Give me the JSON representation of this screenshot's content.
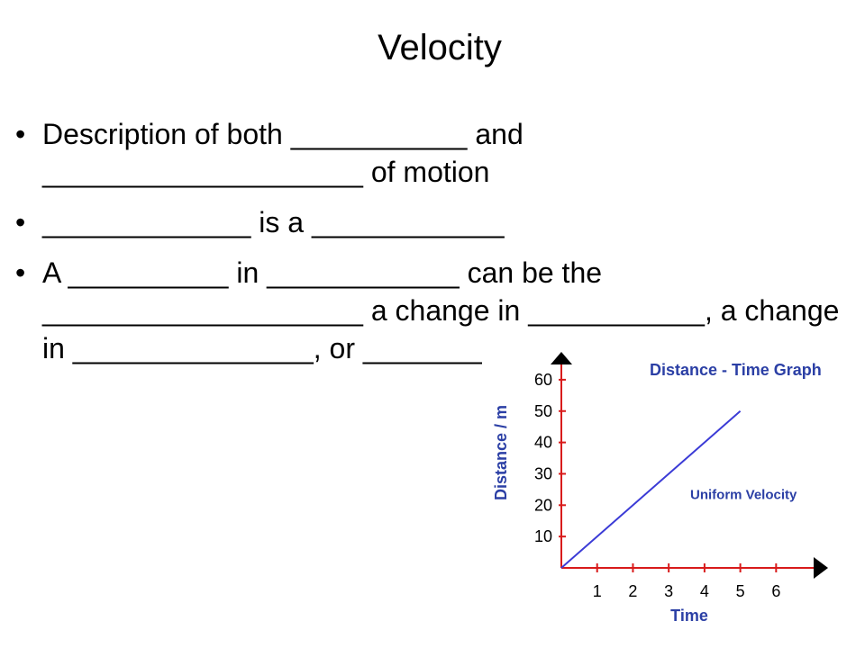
{
  "slide": {
    "title": "Velocity",
    "bullets": [
      {
        "text": "Description of both ___________ and ____________________ of motion"
      },
      {
        "text": "_____________ is a ____________"
      },
      {
        "text": "A __________ in ____________ can be the ____________________ a change in ___________, a change in _______________, or __________"
      }
    ]
  },
  "bullet_glyph": "•",
  "colors": {
    "text": "#000000",
    "axis": "#d81b1b",
    "line": "#3b3bd6",
    "chart_text": "#2b3fa5"
  },
  "chart_data": {
    "type": "line",
    "title": "Distance - Time Graph",
    "xlabel": "Time",
    "ylabel": "Distance / m",
    "x_ticks": [
      1,
      2,
      3,
      4,
      5,
      6
    ],
    "y_ticks": [
      10,
      20,
      30,
      40,
      50,
      60
    ],
    "xlim": [
      0,
      7.2
    ],
    "ylim": [
      0,
      66
    ],
    "grid": false,
    "series": [
      {
        "name": "",
        "x": [
          0,
          5
        ],
        "y": [
          0,
          50
        ]
      }
    ],
    "annotations": [
      {
        "text": "Uniform Velocity",
        "x": 3.6,
        "y": 22
      }
    ]
  }
}
